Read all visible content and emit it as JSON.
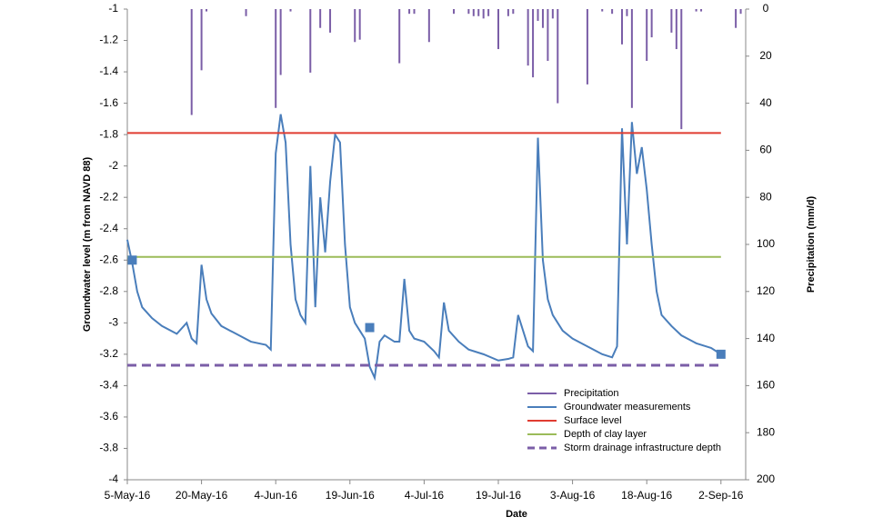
{
  "chart_data": {
    "type": "combo",
    "xlabel": "Date",
    "ylabel": "Groundwater level (m from NAVD 88)",
    "y2label": "Precipitation (mm/d)",
    "xlim": [
      "2016-05-05",
      "2016-09-07"
    ],
    "xticks": [
      {
        "value": "2016-05-05",
        "label": "5-May-16"
      },
      {
        "value": "2016-05-20",
        "label": "20-May-16"
      },
      {
        "value": "2016-06-04",
        "label": "4-Jun-16"
      },
      {
        "value": "2016-06-19",
        "label": "19-Jun-16"
      },
      {
        "value": "2016-07-04",
        "label": "4-Jul-16"
      },
      {
        "value": "2016-07-19",
        "label": "19-Jul-16"
      },
      {
        "value": "2016-08-03",
        "label": "3-Aug-16"
      },
      {
        "value": "2016-08-18",
        "label": "18-Aug-16"
      },
      {
        "value": "2016-09-02",
        "label": "2-Sep-16"
      }
    ],
    "ylim": [
      -4,
      -1
    ],
    "yticks": [
      -4,
      -3.8,
      -3.6,
      -3.4,
      -3.2,
      -3,
      -2.8,
      -2.6,
      -2.4,
      -2.2,
      -2,
      -1.8,
      -1.6,
      -1.4,
      -1.2,
      -1
    ],
    "y2lim": [
      200,
      0
    ],
    "y2ticks": [
      200,
      180,
      160,
      140,
      120,
      100,
      80,
      60,
      40,
      20,
      0
    ],
    "legend": "lower right",
    "series": [
      {
        "name": "Precipitation",
        "type": "bar",
        "axis": "y2",
        "color": "#7b5ea7",
        "x": [
          "2016-05-18",
          "2016-05-20",
          "2016-05-21",
          "2016-05-29",
          "2016-06-04",
          "2016-06-05",
          "2016-06-07",
          "2016-06-11",
          "2016-06-13",
          "2016-06-15",
          "2016-06-20",
          "2016-06-21",
          "2016-06-29",
          "2016-07-01",
          "2016-07-02",
          "2016-07-05",
          "2016-07-10",
          "2016-07-13",
          "2016-07-14",
          "2016-07-15",
          "2016-07-16",
          "2016-07-17",
          "2016-07-19",
          "2016-07-21",
          "2016-07-22",
          "2016-07-25",
          "2016-07-26",
          "2016-07-27",
          "2016-07-28",
          "2016-07-29",
          "2016-07-30",
          "2016-07-31",
          "2016-08-06",
          "2016-08-09",
          "2016-08-11",
          "2016-08-13",
          "2016-08-14",
          "2016-08-15",
          "2016-08-18",
          "2016-08-19",
          "2016-08-23",
          "2016-08-24",
          "2016-08-25",
          "2016-08-28",
          "2016-08-29",
          "2016-09-05",
          "2016-09-06"
        ],
        "values": [
          45,
          26,
          1,
          3,
          42,
          28,
          1,
          27,
          8,
          10,
          14,
          13,
          23,
          2,
          2,
          14,
          2,
          2,
          3,
          3,
          4,
          3,
          17,
          3,
          2,
          24,
          29,
          5,
          8,
          22,
          4,
          40,
          32,
          1,
          2,
          15,
          3,
          42,
          22,
          12,
          10,
          17,
          51,
          1,
          1,
          8,
          2
        ]
      },
      {
        "name": "Groundwater measurements",
        "type": "line",
        "color": "#4a7ebb",
        "x": [
          "2016-05-05",
          "2016-05-06",
          "2016-05-07",
          "2016-05-08",
          "2016-05-10",
          "2016-05-12",
          "2016-05-15",
          "2016-05-17",
          "2016-05-18",
          "2016-05-19",
          "2016-05-20",
          "2016-05-21",
          "2016-05-22",
          "2016-05-24",
          "2016-05-27",
          "2016-05-30",
          "2016-06-02",
          "2016-06-03",
          "2016-06-04",
          "2016-06-05",
          "2016-06-06",
          "2016-06-07",
          "2016-06-08",
          "2016-06-09",
          "2016-06-10",
          "2016-06-11",
          "2016-06-12",
          "2016-06-13",
          "2016-06-14",
          "2016-06-15",
          "2016-06-16",
          "2016-06-17",
          "2016-06-18",
          "2016-06-19",
          "2016-06-20",
          "2016-06-21",
          "2016-06-22",
          "2016-06-23",
          "2016-06-24",
          "2016-06-25",
          "2016-06-26",
          "2016-06-28",
          "2016-06-29",
          "2016-06-30",
          "2016-07-01",
          "2016-07-02",
          "2016-07-04",
          "2016-07-06",
          "2016-07-07",
          "2016-07-08",
          "2016-07-09",
          "2016-07-11",
          "2016-07-13",
          "2016-07-16",
          "2016-07-19",
          "2016-07-21",
          "2016-07-22",
          "2016-07-23",
          "2016-07-24",
          "2016-07-25",
          "2016-07-26",
          "2016-07-27",
          "2016-07-28",
          "2016-07-29",
          "2016-07-30",
          "2016-08-01",
          "2016-08-03",
          "2016-08-06",
          "2016-08-09",
          "2016-08-11",
          "2016-08-12",
          "2016-08-13",
          "2016-08-14",
          "2016-08-15",
          "2016-08-16",
          "2016-08-17",
          "2016-08-18",
          "2016-08-19",
          "2016-08-20",
          "2016-08-21",
          "2016-08-23",
          "2016-08-25",
          "2016-08-28",
          "2016-08-31",
          "2016-09-02"
        ],
        "values": [
          -2.47,
          -2.62,
          -2.8,
          -2.9,
          -2.97,
          -3.02,
          -3.07,
          -3,
          -3.1,
          -3.13,
          -2.63,
          -2.85,
          -2.94,
          -3.02,
          -3.07,
          -3.12,
          -3.14,
          -3.17,
          -1.92,
          -1.67,
          -1.85,
          -2.5,
          -2.85,
          -2.95,
          -3,
          -2,
          -2.9,
          -2.2,
          -2.55,
          -2.1,
          -1.8,
          -1.85,
          -2.5,
          -2.9,
          -3,
          -3.05,
          -3.1,
          -3.28,
          -3.35,
          -3.12,
          -3.08,
          -3.12,
          -3.12,
          -2.72,
          -3.05,
          -3.1,
          -3.12,
          -3.18,
          -3.22,
          -2.87,
          -3.05,
          -3.12,
          -3.17,
          -3.2,
          -3.24,
          -3.23,
          -3.22,
          -2.95,
          -3.05,
          -3.15,
          -3.18,
          -1.82,
          -2.6,
          -2.85,
          -2.95,
          -3.05,
          -3.1,
          -3.15,
          -3.2,
          -3.22,
          -3.15,
          -1.76,
          -2.5,
          -1.72,
          -2.05,
          -1.88,
          -2.15,
          -2.5,
          -2.8,
          -2.95,
          -3.02,
          -3.08,
          -3.13,
          -3.16,
          -3.2
        ]
      },
      {
        "name": "Surface level",
        "type": "line",
        "color": "#e03c31",
        "x": [
          "2016-05-05",
          "2016-09-02"
        ],
        "values": [
          -1.79,
          -1.79
        ]
      },
      {
        "name": "Depth of clay layer",
        "type": "line",
        "color": "#9bbb59",
        "x": [
          "2016-05-05",
          "2016-09-02"
        ],
        "values": [
          -2.58,
          -2.58
        ]
      },
      {
        "name": "Storm drainage infrastructure depth",
        "type": "line",
        "dashed": true,
        "color": "#7b5ea7",
        "x": [
          "2016-05-05",
          "2016-09-02"
        ],
        "values": [
          -3.27,
          -3.27
        ]
      },
      {
        "type": "scatter",
        "marker": "square",
        "color": "#4a7ebb",
        "x": [
          "2016-05-06",
          "2016-06-23",
          "2016-09-02"
        ],
        "values": [
          -2.6,
          -3.03,
          -3.2
        ]
      }
    ]
  }
}
